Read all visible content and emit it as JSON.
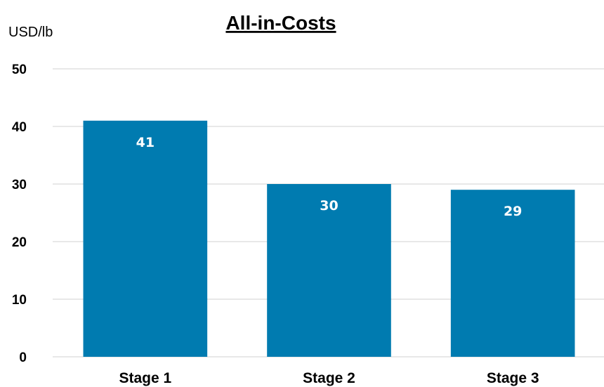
{
  "chart_data": {
    "type": "bar",
    "title": "All-in-Costs",
    "unit_label": "USD/lb",
    "categories": [
      "Stage 1",
      "Stage 2",
      "Stage 3"
    ],
    "values": [
      41,
      30,
      29
    ],
    "data_labels": [
      "41",
      "30",
      "29"
    ],
    "ylim": [
      0,
      50
    ],
    "yticks": [
      "0",
      "10",
      "20",
      "30",
      "40",
      "50"
    ],
    "grid": true,
    "bar_color": "#007BB0",
    "grid_color": "#D9D9D9"
  }
}
